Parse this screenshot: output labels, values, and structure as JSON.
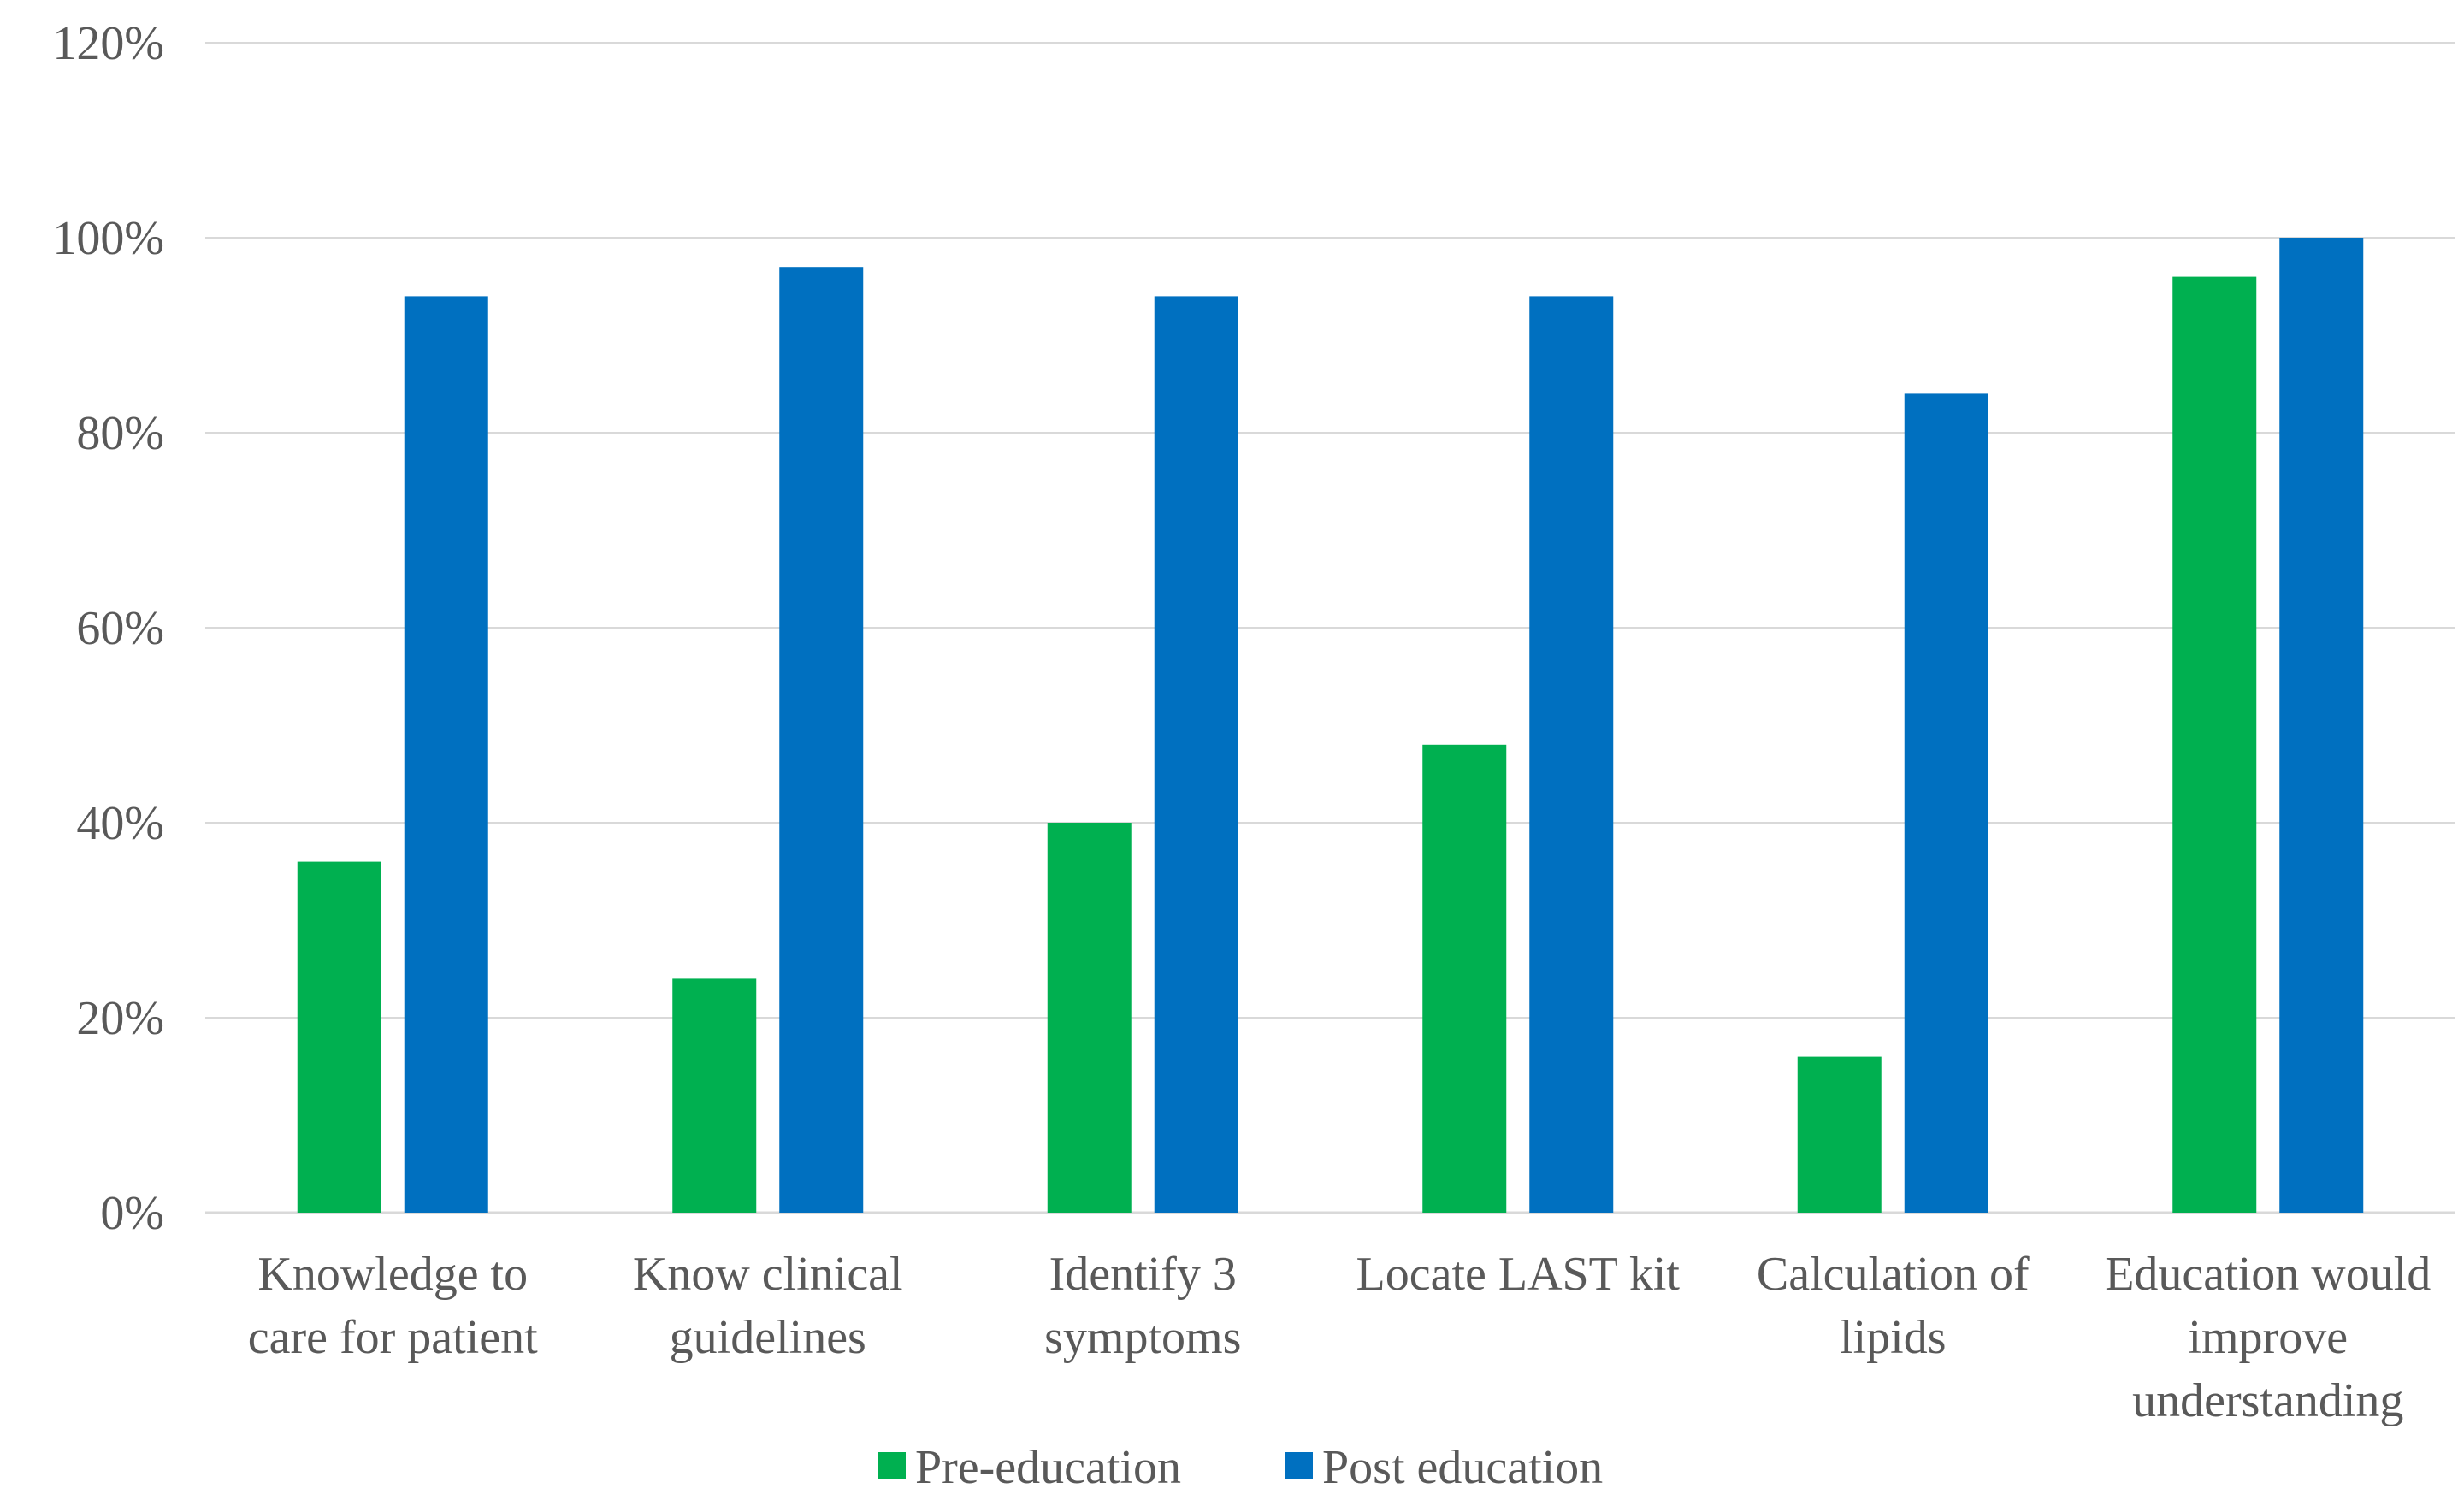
{
  "chart_data": {
    "type": "bar",
    "title": "",
    "xlabel": "",
    "ylabel": "",
    "ylim": [
      0,
      1.2
    ],
    "yticks": [
      "0%",
      "20%",
      "40%",
      "60%",
      "80%",
      "100%",
      "120%"
    ],
    "grid": "horizontal",
    "legend_position": "bottom",
    "categories": [
      [
        "Knowledge to",
        "care for patient"
      ],
      [
        "Know clinical",
        "guidelines"
      ],
      [
        "Identify 3",
        "symptoms"
      ],
      [
        "Locate LAST kit"
      ],
      [
        "Calculation of",
        "lipids"
      ],
      [
        "Education would",
        "improve",
        "understanding"
      ]
    ],
    "series": [
      {
        "name": "Pre-education",
        "color": "#00b050",
        "values": [
          0.36,
          0.24,
          0.4,
          0.48,
          0.16,
          0.96
        ]
      },
      {
        "name": "Post education",
        "color": "#0070c0",
        "values": [
          0.94,
          0.97,
          0.94,
          0.94,
          0.84,
          1.0
        ]
      }
    ]
  }
}
